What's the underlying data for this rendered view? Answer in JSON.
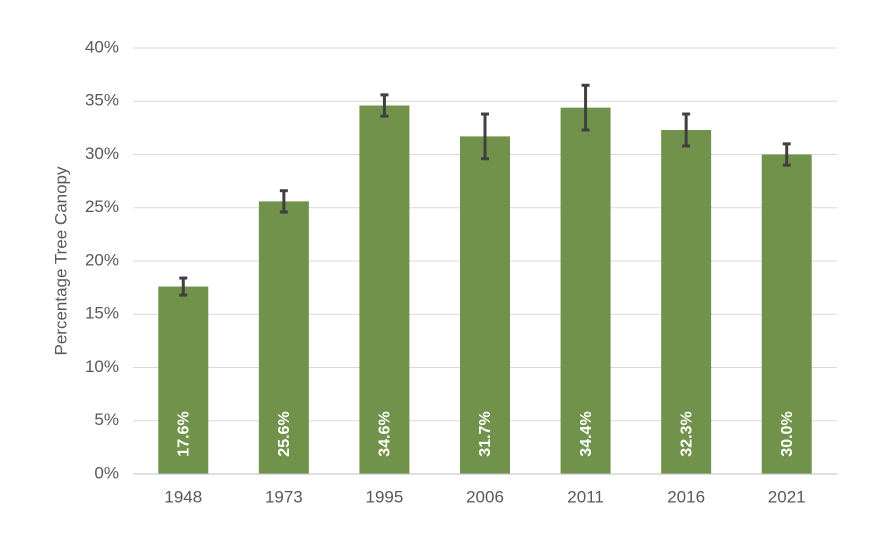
{
  "chart_data": {
    "type": "bar",
    "y_label": "Percentage Tree Canopy",
    "categories": [
      "1948",
      "1973",
      "1995",
      "2006",
      "2011",
      "2016",
      "2021"
    ],
    "values": [
      17.6,
      25.6,
      34.6,
      31.7,
      34.4,
      32.3,
      30.0
    ],
    "value_labels": [
      "17.6%",
      "25.6%",
      "34.6%",
      "31.7%",
      "34.4%",
      "32.3%",
      "30.0%"
    ],
    "errors": [
      0.8,
      1.0,
      1.0,
      2.1,
      2.1,
      1.5,
      1.0
    ],
    "color": "#71924a",
    "error_color": "#404040",
    "ylim": [
      0,
      40
    ],
    "yticks": [
      {
        "value": 0,
        "label": "0%"
      },
      {
        "value": 5,
        "label": "5%"
      },
      {
        "value": 10,
        "label": "10%"
      },
      {
        "value": 15,
        "label": "15%"
      },
      {
        "value": 20,
        "label": "20%"
      },
      {
        "value": 25,
        "label": "25%"
      },
      {
        "value": 30,
        "label": "30%"
      },
      {
        "value": 35,
        "label": "35%"
      },
      {
        "value": 40,
        "label": "40%"
      }
    ],
    "grid": true
  }
}
